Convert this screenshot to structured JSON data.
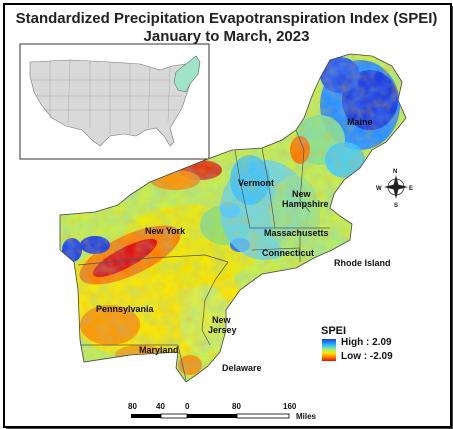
{
  "title_line1": "Standardized Precipitation Evapotranspiration Index (SPEI)",
  "title_line2": "January to March, 2023",
  "states": {
    "maine": "Maine",
    "vermont": "Vermont",
    "new_hampshire": "New Hampshire",
    "massachusetts": "Massachusetts",
    "new_york": "New York",
    "connecticut": "Connecticut",
    "rhode_island": "Rhode Island",
    "pennsylvania": "Pennsylvania",
    "new_jersey": "New Jersey",
    "maryland": "Maryland",
    "delaware": "Delaware"
  },
  "legend": {
    "title": "SPEI",
    "high": "High : 2.09",
    "low": "Low : -2.09",
    "high_value": 2.09,
    "low_value": -2.09
  },
  "scale_bar": {
    "ticks": [
      "80",
      "40",
      "0",
      "80",
      "160"
    ],
    "unit": "Miles"
  },
  "compass": {
    "n": "N",
    "e": "E",
    "s": "S",
    "w": "W"
  },
  "colors": {
    "wet": "#1f3de0",
    "mid": "#b8f060",
    "dry": "#e01010"
  }
}
